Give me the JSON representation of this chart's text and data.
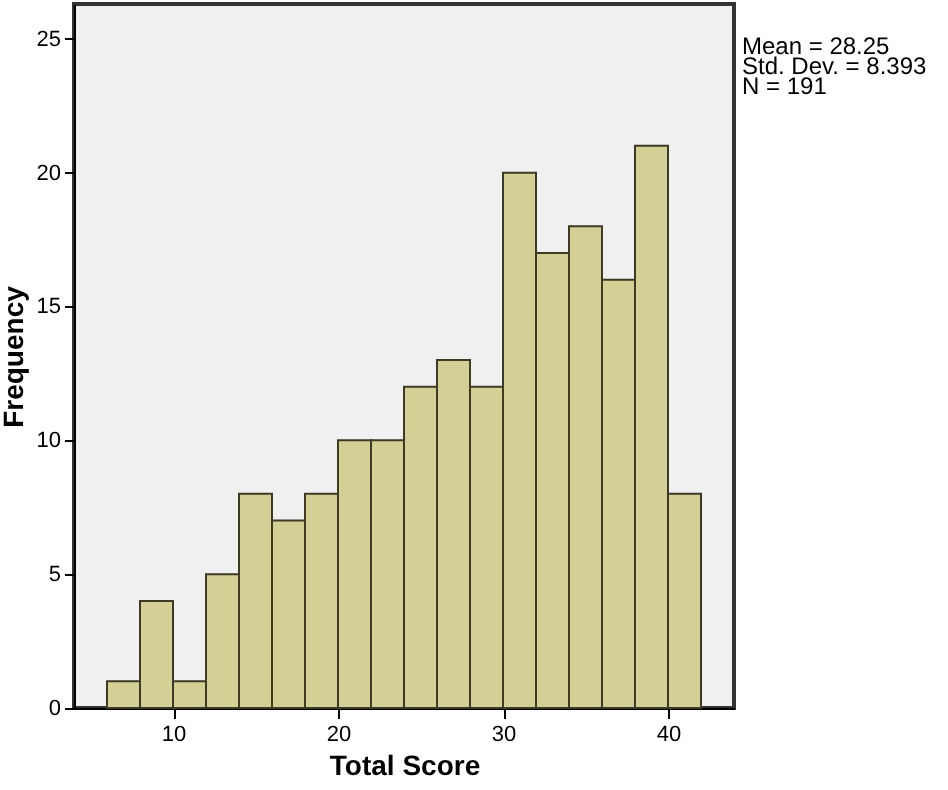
{
  "chart_data": {
    "type": "histogram",
    "xlabel": "Total Score",
    "ylabel": "Frequency",
    "bins": [
      6,
      8,
      10,
      12,
      14,
      16,
      18,
      20,
      22,
      24,
      26,
      28,
      30,
      32,
      34,
      36,
      38,
      40,
      42
    ],
    "values": [
      1,
      4,
      1,
      5,
      8,
      7,
      8,
      10,
      10,
      12,
      13,
      12,
      20,
      17,
      18,
      16,
      21,
      8
    ],
    "color": "#d4d095",
    "xlim": [
      4,
      44
    ],
    "xticks": [
      10,
      20,
      30,
      40
    ],
    "ylim": [
      0,
      26.3
    ],
    "yticks": [
      0,
      5,
      10,
      15,
      20,
      25
    ],
    "grid": false,
    "annotations": [
      "Mean = 28.25",
      "Std. Dev. = 8.393",
      "N = 191"
    ]
  }
}
